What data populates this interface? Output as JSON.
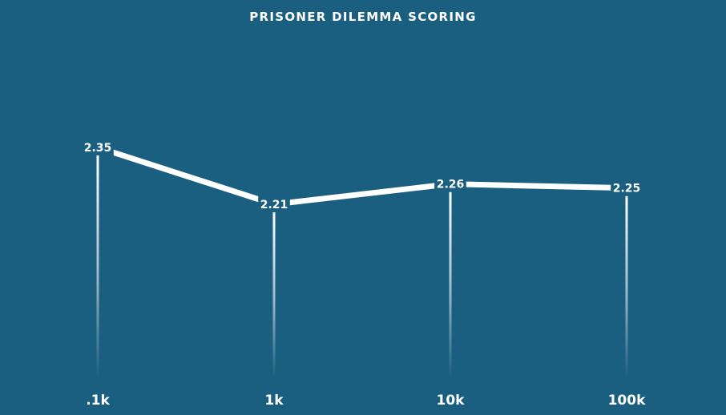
{
  "colors": {
    "background": "#1a5f80",
    "line": "#ffffff",
    "text": "#ffffff"
  },
  "chart_data": {
    "type": "line",
    "title": "PRISONER DILEMMA SCORING",
    "categories": [
      ".1k",
      "1k",
      "10k",
      "100k"
    ],
    "values": [
      2.35,
      2.21,
      2.26,
      2.25
    ],
    "data_labels": [
      "2.35",
      "2.21",
      "2.26",
      "2.25"
    ],
    "xlabel": "",
    "ylabel": "",
    "grid": false,
    "legend": "none"
  }
}
